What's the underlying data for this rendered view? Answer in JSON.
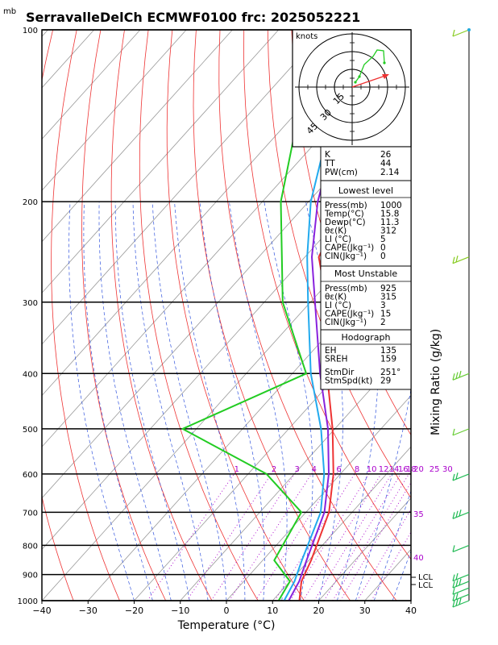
{
  "header": {
    "unit_mb": "mb",
    "title": "SerravalleDelCh ECMWF0100 frc: 2025052221"
  },
  "chart_data": {
    "type": "line",
    "subtype": "skew-t log-p sounding",
    "xlabel": "Temperature (°C)",
    "ylabel_right": "Mixing Ratio (g/kg)",
    "xlim": [
      -40,
      40
    ],
    "ylim_mb": [
      1000,
      100
    ],
    "x_ticks": [
      "−40",
      "−30",
      "−20",
      "−10",
      "0",
      "10",
      "20",
      "30",
      "40"
    ],
    "pressure_ticks": [
      "100",
      "200",
      "300",
      "400",
      "500",
      "600",
      "700",
      "800",
      "900",
      "1000"
    ],
    "mixing_ratio_labels": [
      "1",
      "2",
      "3",
      "4",
      "6",
      "8",
      "10",
      "12",
      "14",
      "16",
      "18",
      "20",
      "25",
      "30"
    ],
    "theta_e_labels": [
      "35",
      "40"
    ],
    "lcl_labels": [
      "LCL",
      "LCL"
    ],
    "series": [
      {
        "key": "temperature",
        "color": "#ee3333",
        "points": [
          [
            1000,
            15.8
          ],
          [
            925,
            12.5
          ],
          [
            850,
            10.5
          ],
          [
            700,
            5.0
          ],
          [
            600,
            -1.5
          ],
          [
            500,
            -10.5
          ],
          [
            400,
            -22.5
          ],
          [
            300,
            -36.5
          ],
          [
            250,
            -47.0
          ],
          [
            200,
            -52.0
          ],
          [
            100,
            -58.0
          ]
        ]
      },
      {
        "key": "dewpoint",
        "color": "#22cc22",
        "points": [
          [
            1000,
            11.3
          ],
          [
            925,
            10.0
          ],
          [
            850,
            2.5
          ],
          [
            700,
            -1.0
          ],
          [
            600,
            -16.0
          ],
          [
            500,
            -43.0
          ],
          [
            400,
            -27.0
          ],
          [
            300,
            -46.0
          ],
          [
            250,
            -55.0
          ],
          [
            200,
            -66.0
          ],
          [
            100,
            -92.0
          ]
        ]
      },
      {
        "key": "parcel-virtual",
        "color": "#8822dd",
        "points": [
          [
            1000,
            13.5
          ],
          [
            925,
            12.0
          ],
          [
            850,
            9.5
          ],
          [
            700,
            4.0
          ],
          [
            600,
            -2.5
          ],
          [
            500,
            -11.5
          ],
          [
            400,
            -24.0
          ],
          [
            300,
            -39.0
          ],
          [
            250,
            -48.5
          ],
          [
            200,
            -58.0
          ],
          [
            115,
            -77.0
          ]
        ]
      },
      {
        "key": "parcel",
        "color": "#22aaee",
        "points": [
          [
            1000,
            12.5
          ],
          [
            925,
            11.0
          ],
          [
            850,
            8.5
          ],
          [
            700,
            3.2
          ],
          [
            600,
            -3.5
          ],
          [
            500,
            -13.0
          ],
          [
            400,
            -26.0
          ],
          [
            300,
            -40.5
          ],
          [
            250,
            -49.5
          ],
          [
            200,
            -59.5
          ],
          [
            115,
            -79.0
          ]
        ]
      }
    ],
    "wind_barbs_mb": [
      100,
      250,
      400,
      500,
      600,
      700,
      800,
      900,
      925,
      950,
      975,
      1000
    ]
  },
  "hodograph": {
    "unit": "knots",
    "ring_labels": [
      "15",
      "30",
      "45"
    ]
  },
  "indices": {
    "rows": [
      {
        "label": "K",
        "value": "26"
      },
      {
        "label": "TT",
        "value": "44"
      },
      {
        "label": "PW(cm)",
        "value": "2.14"
      }
    ]
  },
  "lowest_level": {
    "title": "Lowest level",
    "rows": [
      {
        "label": "Press(mb)",
        "value": "1000"
      },
      {
        "label": "Temp(°C)",
        "value": "15.8"
      },
      {
        "label": "Dewp(°C)",
        "value": "11.3"
      },
      {
        "label": "θε(K)",
        "value": "312"
      },
      {
        "label": "LI (°C)",
        "value": "5"
      },
      {
        "label": "CAPE(Jkg⁻¹)",
        "value": "0"
      },
      {
        "label": "CIN(Jkg⁻¹)",
        "value": "0"
      }
    ]
  },
  "most_unstable": {
    "title": "Most Unstable",
    "rows": [
      {
        "label": "Press(mb)",
        "value": "925"
      },
      {
        "label": "θε(K)",
        "value": "315"
      },
      {
        "label": "LI (°C)",
        "value": "3"
      },
      {
        "label": "CAPE(Jkg⁻¹)",
        "value": "15"
      },
      {
        "label": "CIN(Jkg⁻¹)",
        "value": "2"
      }
    ]
  },
  "hodograph_stats": {
    "title": "Hodograph",
    "rows": [
      {
        "label": "EH",
        "value": "135"
      },
      {
        "label": "SREH",
        "value": "159"
      },
      {
        "label": "StmDir",
        "value": "251°"
      },
      {
        "label": "StmSpd(kt)",
        "value": "29"
      }
    ]
  }
}
